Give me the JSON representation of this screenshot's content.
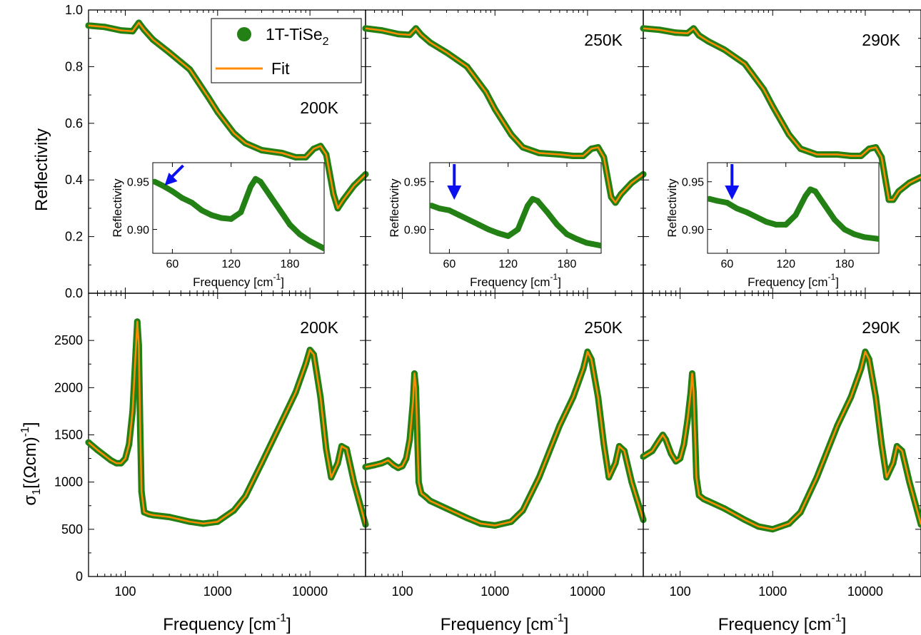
{
  "figure": {
    "xlabel_main": "Frequency [cm",
    "xlabel_sup": "-1",
    "xlabel_close": "]",
    "top_ylabel": "Reflectivity",
    "bottom_ylabel_base": "σ",
    "bottom_ylabel_sub": "1",
    "bottom_ylabel_mid": "[(Ωcm)",
    "bottom_ylabel_sup": "-1",
    "bottom_ylabel_close": "]",
    "legend": {
      "data_label": "1T-TiSe",
      "data_sub": "2",
      "fit_label": "Fit"
    }
  },
  "colors": {
    "data": "#238014",
    "fit": "#ff8c00",
    "arrow": "#0a10f0"
  },
  "chart_data": [
    {
      "type": "scatter",
      "panel": "reflectivity",
      "temperature_label": "200K",
      "xscale": "log",
      "xlim": [
        40,
        40000
      ],
      "ylim": [
        0.0,
        1.0
      ],
      "xticks": [
        100,
        1000,
        10000
      ],
      "yticks": [
        0.0,
        0.2,
        0.4,
        0.6,
        0.8,
        1.0
      ],
      "series": [
        {
          "name": "1T-TiSe2",
          "x": [
            40,
            60,
            90,
            120,
            140,
            160,
            200,
            300,
            500,
            800,
            1000,
            1500,
            2000,
            3000,
            5000,
            7000,
            9000,
            11000,
            13000,
            15000,
            18000,
            20000,
            23000,
            30000,
            40000
          ],
          "y": [
            0.945,
            0.94,
            0.928,
            0.925,
            0.955,
            0.93,
            0.895,
            0.85,
            0.79,
            0.69,
            0.64,
            0.565,
            0.53,
            0.505,
            0.495,
            0.48,
            0.48,
            0.51,
            0.52,
            0.49,
            0.35,
            0.3,
            0.33,
            0.38,
            0.42
          ]
        }
      ],
      "inset": {
        "xlabel": "Frequency [cm-1]",
        "ylabel": "Reflectivity",
        "xlim": [
          40,
          215
        ],
        "ylim": [
          0.875,
          0.97
        ],
        "xticks": [
          60,
          120,
          180
        ],
        "yticks": [
          0.9,
          0.95
        ],
        "arrow_at": 55,
        "x": [
          42,
          50,
          60,
          70,
          80,
          90,
          100,
          110,
          120,
          130,
          140,
          145,
          150,
          160,
          170,
          180,
          190,
          200,
          215
        ],
        "y": [
          0.95,
          0.946,
          0.94,
          0.933,
          0.928,
          0.92,
          0.915,
          0.912,
          0.911,
          0.918,
          0.945,
          0.953,
          0.95,
          0.935,
          0.92,
          0.905,
          0.895,
          0.888,
          0.88
        ]
      }
    },
    {
      "type": "scatter",
      "panel": "reflectivity",
      "temperature_label": "250K",
      "xscale": "log",
      "xlim": [
        40,
        40000
      ],
      "ylim": [
        0.0,
        1.0
      ],
      "series": [
        {
          "name": "1T-TiSe2",
          "x": [
            40,
            60,
            90,
            120,
            140,
            160,
            200,
            300,
            500,
            800,
            1000,
            1500,
            2000,
            3000,
            5000,
            7000,
            9000,
            11000,
            13000,
            15000,
            18000,
            20000,
            23000,
            30000,
            40000
          ],
          "y": [
            0.935,
            0.928,
            0.915,
            0.912,
            0.935,
            0.912,
            0.885,
            0.85,
            0.8,
            0.71,
            0.65,
            0.56,
            0.515,
            0.495,
            0.49,
            0.485,
            0.485,
            0.51,
            0.515,
            0.48,
            0.34,
            0.32,
            0.35,
            0.39,
            0.42
          ]
        }
      ],
      "inset": {
        "xlabel": "Frequency [cm-1]",
        "ylabel": "Reflectivity",
        "xlim": [
          40,
          215
        ],
        "ylim": [
          0.875,
          0.97
        ],
        "xticks": [
          60,
          120,
          180
        ],
        "yticks": [
          0.9,
          0.95
        ],
        "arrow_at": 65,
        "x": [
          42,
          50,
          60,
          70,
          80,
          90,
          100,
          110,
          120,
          130,
          140,
          145,
          150,
          160,
          170,
          180,
          190,
          200,
          215
        ],
        "y": [
          0.925,
          0.922,
          0.92,
          0.915,
          0.91,
          0.905,
          0.9,
          0.896,
          0.893,
          0.9,
          0.925,
          0.932,
          0.93,
          0.918,
          0.905,
          0.895,
          0.89,
          0.886,
          0.883
        ]
      }
    },
    {
      "type": "scatter",
      "panel": "reflectivity",
      "temperature_label": "290K",
      "xscale": "log",
      "xlim": [
        40,
        40000
      ],
      "ylim": [
        0.0,
        1.0
      ],
      "series": [
        {
          "name": "1T-TiSe2",
          "x": [
            40,
            60,
            90,
            120,
            140,
            160,
            200,
            300,
            500,
            800,
            1000,
            1500,
            2000,
            3000,
            5000,
            7000,
            9000,
            11000,
            13000,
            15000,
            18000,
            20000,
            23000,
            30000,
            40000
          ],
          "y": [
            0.935,
            0.93,
            0.92,
            0.918,
            0.935,
            0.91,
            0.89,
            0.86,
            0.81,
            0.72,
            0.66,
            0.56,
            0.51,
            0.49,
            0.49,
            0.485,
            0.485,
            0.51,
            0.515,
            0.48,
            0.33,
            0.33,
            0.36,
            0.39,
            0.41
          ]
        }
      ],
      "inset": {
        "xlabel": "Frequency [cm-1]",
        "ylabel": "Reflectivity",
        "xlim": [
          40,
          215
        ],
        "ylim": [
          0.875,
          0.97
        ],
        "xticks": [
          60,
          120,
          180
        ],
        "yticks": [
          0.9,
          0.95
        ],
        "arrow_at": 65,
        "x": [
          42,
          50,
          60,
          70,
          80,
          90,
          100,
          110,
          120,
          130,
          140,
          145,
          150,
          160,
          170,
          180,
          190,
          200,
          215
        ],
        "y": [
          0.932,
          0.93,
          0.928,
          0.922,
          0.918,
          0.913,
          0.908,
          0.905,
          0.905,
          0.915,
          0.935,
          0.942,
          0.94,
          0.925,
          0.91,
          0.9,
          0.895,
          0.892,
          0.89
        ]
      }
    },
    {
      "type": "scatter",
      "panel": "conductivity",
      "temperature_label": "200K",
      "xscale": "log",
      "xlim": [
        40,
        40000
      ],
      "ylim": [
        0,
        3000
      ],
      "yticks": [
        0,
        500,
        1000,
        1500,
        2000,
        2500
      ],
      "series": [
        {
          "name": "1T-TiSe2",
          "x": [
            40,
            50,
            60,
            70,
            80,
            90,
            100,
            110,
            120,
            130,
            135,
            140,
            145,
            150,
            160,
            180,
            200,
            300,
            500,
            700,
            1000,
            1500,
            2000,
            3000,
            5000,
            7000,
            9000,
            10000,
            11000,
            13000,
            15000,
            17000,
            20000,
            22000,
            25000,
            30000,
            40000
          ],
          "y": [
            1420,
            1340,
            1280,
            1230,
            1200,
            1200,
            1250,
            1400,
            1750,
            2400,
            2700,
            2450,
            1600,
            900,
            680,
            660,
            650,
            630,
            580,
            560,
            580,
            700,
            850,
            1200,
            1650,
            1950,
            2250,
            2400,
            2350,
            1900,
            1350,
            1050,
            1200,
            1380,
            1350,
            1000,
            550
          ]
        }
      ]
    },
    {
      "type": "scatter",
      "panel": "conductivity",
      "temperature_label": "250K",
      "xscale": "log",
      "xlim": [
        40,
        40000
      ],
      "ylim": [
        0,
        3000
      ],
      "series": [
        {
          "name": "1T-TiSe2",
          "x": [
            40,
            50,
            60,
            70,
            80,
            90,
            100,
            110,
            120,
            130,
            135,
            140,
            145,
            150,
            160,
            180,
            200,
            300,
            500,
            700,
            1000,
            1500,
            2000,
            3000,
            5000,
            7000,
            9000,
            10000,
            11000,
            13000,
            15000,
            17000,
            20000,
            22000,
            25000,
            30000,
            40000
          ],
          "y": [
            1160,
            1180,
            1200,
            1230,
            1180,
            1150,
            1170,
            1250,
            1450,
            1850,
            2150,
            2000,
            1500,
            1000,
            880,
            840,
            800,
            720,
            620,
            560,
            540,
            580,
            700,
            1050,
            1600,
            1900,
            2200,
            2380,
            2300,
            1900,
            1400,
            1050,
            1200,
            1380,
            1330,
            1000,
            600
          ]
        }
      ]
    },
    {
      "type": "scatter",
      "panel": "conductivity",
      "temperature_label": "290K",
      "xscale": "log",
      "xlim": [
        40,
        40000
      ],
      "ylim": [
        0,
        3000
      ],
      "series": [
        {
          "name": "1T-TiSe2",
          "x": [
            40,
            50,
            60,
            65,
            70,
            80,
            90,
            100,
            110,
            120,
            130,
            135,
            140,
            145,
            150,
            160,
            180,
            200,
            300,
            500,
            700,
            1000,
            1500,
            2000,
            3000,
            5000,
            7000,
            9000,
            10000,
            11000,
            13000,
            15000,
            17000,
            20000,
            22000,
            25000,
            30000,
            40000
          ],
          "y": [
            1270,
            1330,
            1450,
            1500,
            1450,
            1300,
            1220,
            1250,
            1400,
            1650,
            1950,
            2150,
            1950,
            1500,
            1050,
            860,
            820,
            800,
            720,
            600,
            530,
            500,
            560,
            680,
            1050,
            1600,
            1900,
            2200,
            2380,
            2300,
            1900,
            1400,
            1050,
            1200,
            1380,
            1330,
            1000,
            550
          ]
        }
      ]
    }
  ]
}
